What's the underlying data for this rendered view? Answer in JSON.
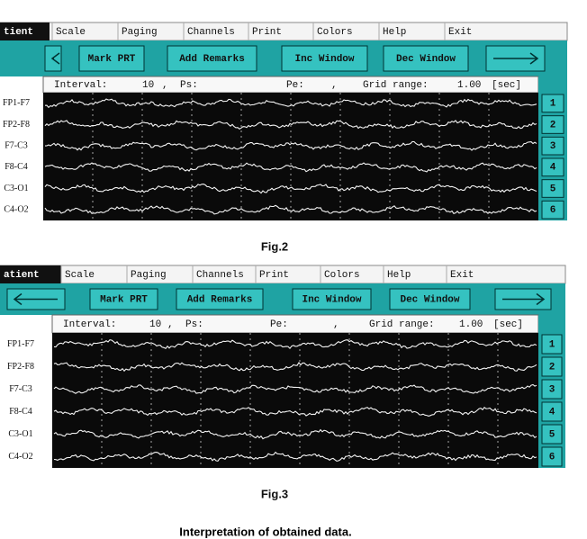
{
  "figures": [
    {
      "tab": "tient",
      "menu": [
        "Scale",
        "Paging",
        "Channels",
        "Print",
        "Colors",
        "Help",
        "Exit"
      ],
      "buttons": [
        "Mark PRT",
        "Add Remarks",
        "Inc Window",
        "Dec Window"
      ],
      "info": [
        "Interval:",
        "10",
        ",",
        "Ps:",
        "Pe:",
        ",",
        "Grid range:",
        "1.00",
        "[sec]"
      ],
      "channels": [
        "FP1-F7",
        "FP2-F8",
        "F7-C3",
        "F8-C4",
        "C3-O1",
        "C4-O2"
      ],
      "numbers": [
        "1",
        "2",
        "3",
        "4",
        "5",
        "6"
      ],
      "caption": "Fig.2"
    },
    {
      "tab": "atient",
      "menu": [
        "Scale",
        "Paging",
        "Channels",
        "Print",
        "Colors",
        "Help",
        "Exit"
      ],
      "buttons": [
        "Mark PRT",
        "Add Remarks",
        "Inc Window",
        "Dec Window"
      ],
      "info": [
        "Interval:",
        "10",
        ",",
        "Ps:",
        "Pe:",
        ",",
        "Grid range:",
        "1.00",
        "[sec]"
      ],
      "channels": [
        "FP1-F7",
        "FP2-F8",
        "F7-C3",
        "F8-C4",
        "C3-O1",
        "C4-O2"
      ],
      "numbers": [
        "1",
        "2",
        "3",
        "4",
        "5",
        "6"
      ],
      "caption": "Fig.3"
    }
  ],
  "footer": "Interpretation of obtained data."
}
